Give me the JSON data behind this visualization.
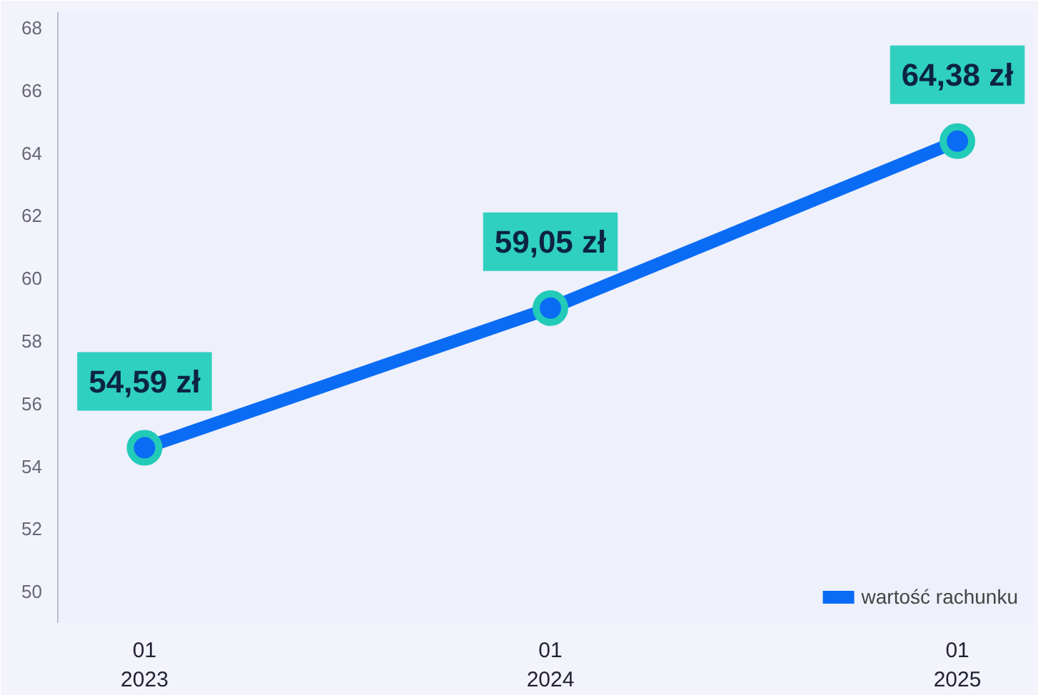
{
  "chart_data": {
    "type": "line",
    "x": [
      "2023-01",
      "2024-01",
      "2025-01"
    ],
    "series": [
      {
        "name": "wartość rachunku",
        "color": "#0a6cf5",
        "values": [
          54.59,
          59.05,
          64.38
        ],
        "value_labels": [
          "54,59 zł",
          "59,05 zł",
          "64,38 zł"
        ]
      }
    ],
    "xlim": [
      "2022-10-15",
      "2025-03-10"
    ],
    "xticks": [
      {
        "value": "2023-01",
        "label": "01\n2023"
      },
      {
        "value": "2024-01",
        "label": "01\n2024"
      },
      {
        "value": "2025-01",
        "label": "01\n2025"
      }
    ],
    "ylim": [
      49,
      68.5
    ],
    "yticks": [
      50,
      52,
      54,
      56,
      58,
      60,
      62,
      64,
      66,
      68
    ],
    "grid": false,
    "legend": "bottom right",
    "marker": "circle",
    "line_style": "solid"
  }
}
